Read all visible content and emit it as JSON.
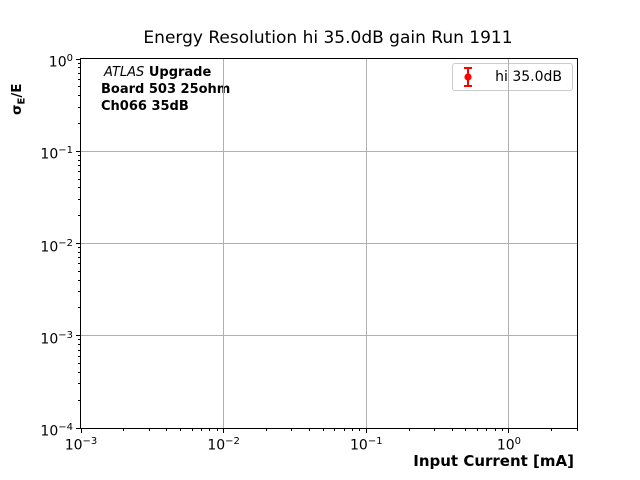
{
  "title": "Energy Resolution hi 35.0dB gain Run 1911",
  "annotation": {
    "experiment": "ATLAS",
    "line1_rest": "Upgrade",
    "line2": "Board 503 25ohm",
    "line3": "Ch066 35dB"
  },
  "legend": {
    "position": "upper right",
    "entries": [
      {
        "label": "hi 35.0dB",
        "marker": "errorbar-circle",
        "color": "#ff0000"
      }
    ]
  },
  "ylabel_parts": {
    "sigma": "σ",
    "sub": "E",
    "rest": "/E"
  },
  "chart_data": {
    "type": "scatter",
    "title": "Energy Resolution hi 35.0dB gain Run 1911",
    "xlabel": "Input Current [mA]",
    "ylabel": "σ_E/E",
    "xscale": "log",
    "yscale": "log",
    "xlim": [
      0.001,
      3
    ],
    "ylim": [
      0.0001,
      1
    ],
    "tick_base": "10",
    "x_tick_exponents": [
      -3,
      -2,
      -1,
      0
    ],
    "y_tick_exponents": [
      0,
      -1,
      -2,
      -3,
      -4
    ],
    "grid": true,
    "grid_color": "#b0b0b0",
    "legend_position": "upper right",
    "series": [
      {
        "name": "hi 35.0dB",
        "color": "#ff0000",
        "marker": "o",
        "x": [],
        "y": []
      }
    ]
  }
}
